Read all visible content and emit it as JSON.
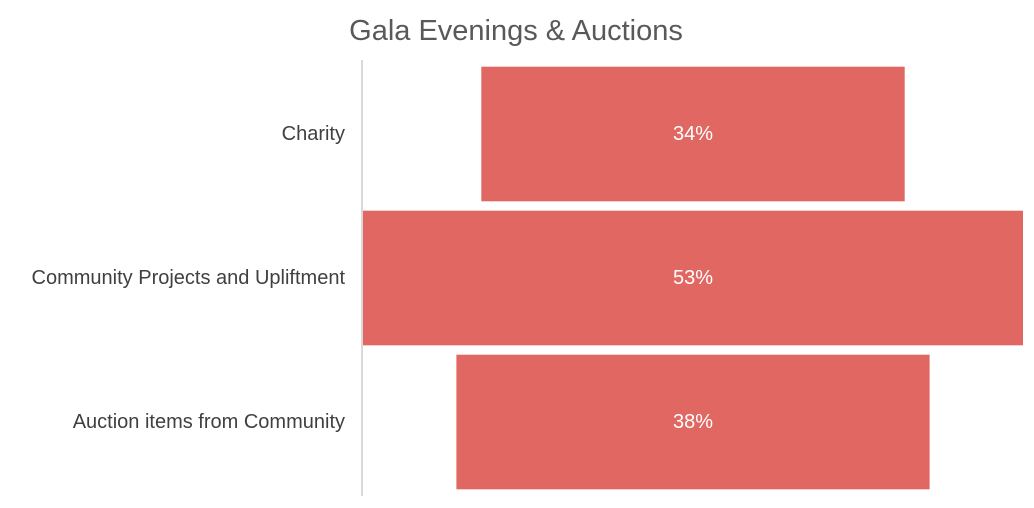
{
  "chart_data": {
    "type": "bar",
    "orientation": "horizontal",
    "layout": "funnel",
    "title": "Gala Evenings & Auctions",
    "categories": [
      "Charity",
      "Community Projects and Upliftment",
      "Auction items from Community"
    ],
    "values": [
      34,
      53,
      38
    ],
    "value_labels": [
      "34%",
      "53%",
      "38%"
    ],
    "unit": "%",
    "bar_color": "#E06762",
    "axis_color": "#D9D9D9",
    "grid": false,
    "legend": "none"
  }
}
